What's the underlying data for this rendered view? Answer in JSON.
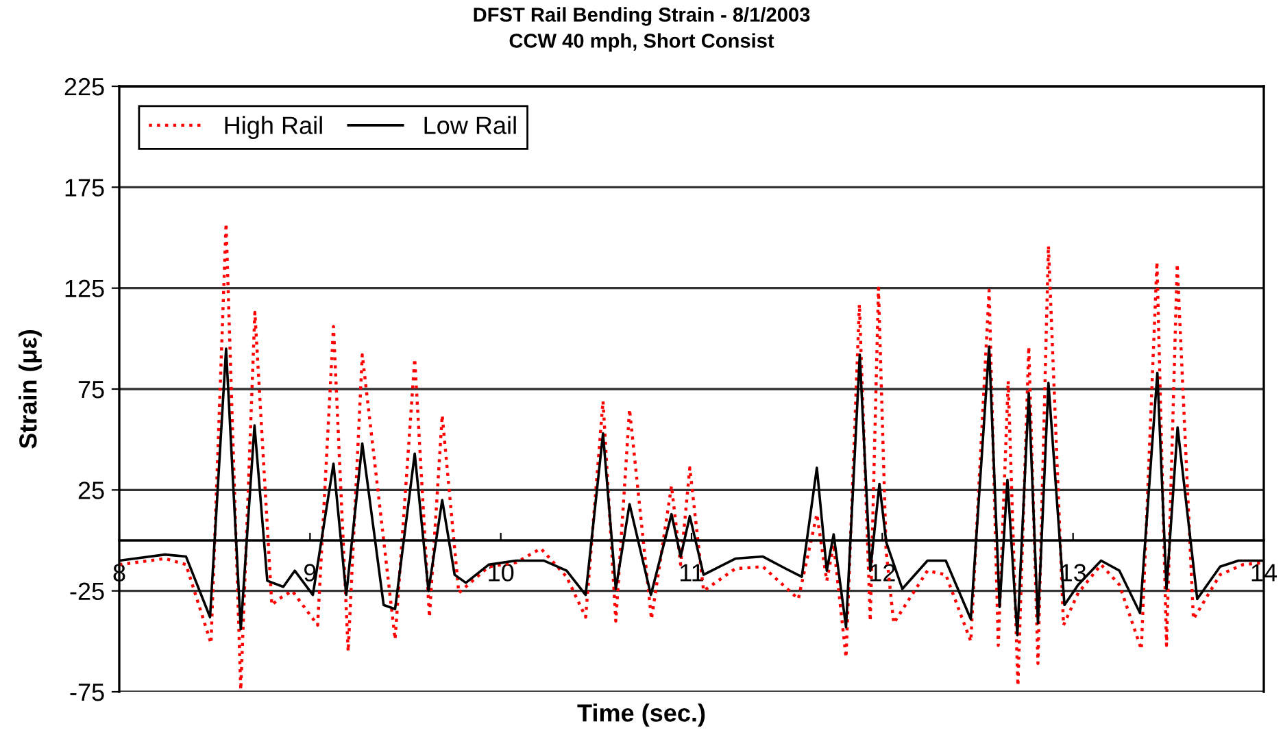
{
  "chart_data": {
    "type": "line",
    "title": "DFST Rail Bending Strain - 8/1/2003",
    "subtitle": "CCW 40 mph, Short Consist",
    "xlabel": "Time (sec.)",
    "ylabel": "Strain (με)",
    "xlim": [
      8,
      14
    ],
    "xticks": [
      8,
      9,
      10,
      11,
      12,
      13,
      14
    ],
    "ylim": [
      -75,
      225
    ],
    "yticks": [
      -75,
      -25,
      25,
      75,
      125,
      175,
      225
    ],
    "grid": "y",
    "legend": "top left",
    "series": [
      {
        "name": "High Rail",
        "color": "#ff0000",
        "line_style": "dotted",
        "x": [
          8.0,
          8.24,
          8.35,
          8.481,
          8.56,
          8.637,
          8.711,
          8.8,
          8.836,
          8.907,
          9.04,
          9.123,
          9.2,
          9.274,
          9.446,
          9.549,
          9.626,
          9.693,
          9.78,
          9.937,
          10.08,
          10.21,
          10.345,
          10.445,
          10.536,
          10.603,
          10.675,
          10.79,
          10.895,
          10.943,
          10.991,
          11.063,
          11.23,
          11.374,
          11.56,
          11.657,
          11.709,
          11.745,
          11.81,
          11.88,
          11.937,
          11.98,
          12.02,
          12.06,
          12.237,
          12.333,
          12.464,
          12.56,
          12.608,
          12.66,
          12.711,
          12.768,
          12.816,
          12.871,
          12.95,
          13.027,
          13.147,
          13.243,
          13.358,
          13.44,
          13.49,
          13.546,
          13.631,
          13.771,
          13.89,
          14.0
        ],
        "values": [
          -12,
          -9,
          -12,
          -51,
          157,
          -74,
          113,
          -32,
          -29,
          -25,
          -42,
          106,
          -55,
          92,
          -49,
          90,
          -38,
          62,
          -26,
          -13,
          -11,
          -4,
          -18,
          -38,
          69,
          -40,
          65,
          -39,
          27,
          -12,
          36,
          -25,
          -14,
          -13,
          -29,
          13,
          -20,
          -2,
          -58,
          117,
          -40,
          125,
          -5,
          -41,
          -15,
          -17,
          -50,
          124,
          -52,
          79,
          -72,
          96,
          -61,
          146,
          -42,
          -26,
          -12,
          -22,
          -54,
          138,
          -52,
          137,
          -39,
          -17,
          -12,
          -11
        ]
      },
      {
        "name": "Low Rail",
        "color": "#000000",
        "line_style": "solid",
        "x": [
          8.0,
          8.24,
          8.35,
          8.476,
          8.56,
          8.637,
          8.709,
          8.776,
          8.86,
          8.92,
          9.015,
          9.123,
          9.19,
          9.274,
          9.386,
          9.446,
          9.549,
          9.621,
          9.693,
          9.758,
          9.817,
          9.937,
          10.08,
          10.225,
          10.345,
          10.445,
          10.536,
          10.603,
          10.675,
          10.787,
          10.895,
          10.943,
          10.991,
          11.063,
          11.23,
          11.374,
          11.494,
          11.578,
          11.657,
          11.709,
          11.745,
          11.81,
          11.882,
          11.937,
          11.985,
          12.021,
          12.105,
          12.237,
          12.333,
          12.464,
          12.56,
          12.615,
          12.656,
          12.708,
          12.768,
          12.816,
          12.871,
          12.955,
          13.027,
          13.147,
          13.243,
          13.351,
          13.442,
          13.49,
          13.548,
          13.651,
          13.771,
          13.867,
          14.0
        ],
        "values": [
          -10,
          -7,
          -8,
          -38,
          95,
          -44,
          57,
          -20,
          -23,
          -15,
          -27,
          38,
          -27,
          48,
          -32,
          -34,
          43,
          -25,
          20,
          -17,
          -21,
          -12,
          -10,
          -10,
          -15,
          -27,
          53,
          -24,
          18,
          -27,
          13,
          -8,
          12,
          -17,
          -9,
          -8,
          -14,
          -18,
          36,
          -15,
          3,
          -43,
          92,
          -15,
          28,
          -1,
          -24,
          -10,
          -10,
          -39,
          96,
          -33,
          30,
          -47,
          73,
          -41,
          78,
          -32,
          -22,
          -10,
          -15,
          -36,
          83,
          -24,
          56,
          -29,
          -13,
          -10,
          -10
        ]
      }
    ]
  }
}
